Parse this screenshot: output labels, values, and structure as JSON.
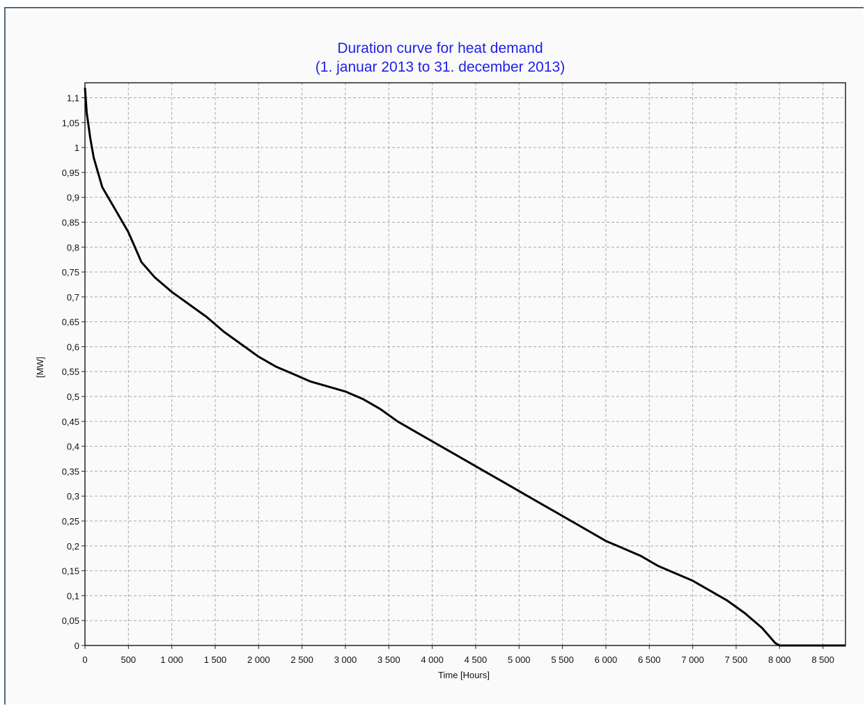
{
  "colors": {
    "title": "#1f1fe6",
    "curve": "#000000",
    "grid": "#a8a8a8",
    "frame": "#556a80",
    "background": "#fafafa"
  },
  "chart_data": {
    "type": "line",
    "title": "Duration curve for heat demand",
    "subtitle": "(1. januar 2013  to  31. december 2013)",
    "xlabel": "Time [Hours]",
    "ylabel": "[MW]",
    "xlim": [
      0,
      8760
    ],
    "ylim": [
      0,
      1.13
    ],
    "grid": true,
    "legend": "none",
    "x_ticks": [
      0,
      500,
      1000,
      1500,
      2000,
      2500,
      3000,
      3500,
      4000,
      4500,
      5000,
      5500,
      6000,
      6500,
      7000,
      7500,
      8000,
      8500
    ],
    "x_tick_labels": [
      "0",
      "500",
      "1 000",
      "1 500",
      "2 000",
      "2 500",
      "3 000",
      "3 500",
      "4 000",
      "4 500",
      "5 000",
      "5 500",
      "6 000",
      "6 500",
      "7 000",
      "7 500",
      "8 000",
      "8 500"
    ],
    "y_ticks": [
      0,
      0.05,
      0.1,
      0.15,
      0.2,
      0.25,
      0.3,
      0.35,
      0.4,
      0.45,
      0.5,
      0.55,
      0.6,
      0.65,
      0.7,
      0.75,
      0.8,
      0.85,
      0.9,
      0.95,
      1,
      1.05,
      1.1
    ],
    "y_tick_labels": [
      "0",
      "0,05",
      "0,1",
      "0,15",
      "0,2",
      "0,25",
      "0,3",
      "0,35",
      "0,4",
      "0,45",
      "0,5",
      "0,55",
      "0,6",
      "0,65",
      "0,7",
      "0,75",
      "0,8",
      "0,85",
      "0,9",
      "0,95",
      "1",
      "1,05",
      "1,1"
    ],
    "series": [
      {
        "x": [
          0,
          20,
          60,
          100,
          150,
          200,
          300,
          400,
          500,
          550,
          600,
          650,
          700,
          800,
          900,
          1000,
          1200,
          1400,
          1600,
          1800,
          2000,
          2200,
          2400,
          2600,
          2800,
          3000,
          3200,
          3400,
          3600,
          3800,
          4000,
          4200,
          4400,
          4600,
          4800,
          5000,
          5200,
          5400,
          5600,
          5800,
          6000,
          6200,
          6400,
          6600,
          6800,
          7000,
          7200,
          7400,
          7600,
          7800,
          7950,
          8000,
          8200,
          8400,
          8600,
          8760
        ],
        "y": [
          1.12,
          1.07,
          1.02,
          0.98,
          0.95,
          0.92,
          0.89,
          0.86,
          0.83,
          0.81,
          0.79,
          0.77,
          0.76,
          0.74,
          0.725,
          0.71,
          0.685,
          0.66,
          0.63,
          0.605,
          0.58,
          0.56,
          0.545,
          0.53,
          0.52,
          0.51,
          0.495,
          0.475,
          0.45,
          0.43,
          0.41,
          0.39,
          0.37,
          0.35,
          0.33,
          0.31,
          0.29,
          0.27,
          0.25,
          0.23,
          0.21,
          0.195,
          0.18,
          0.16,
          0.145,
          0.13,
          0.11,
          0.09,
          0.065,
          0.035,
          0.005,
          0,
          0,
          0,
          0,
          0
        ]
      }
    ]
  }
}
